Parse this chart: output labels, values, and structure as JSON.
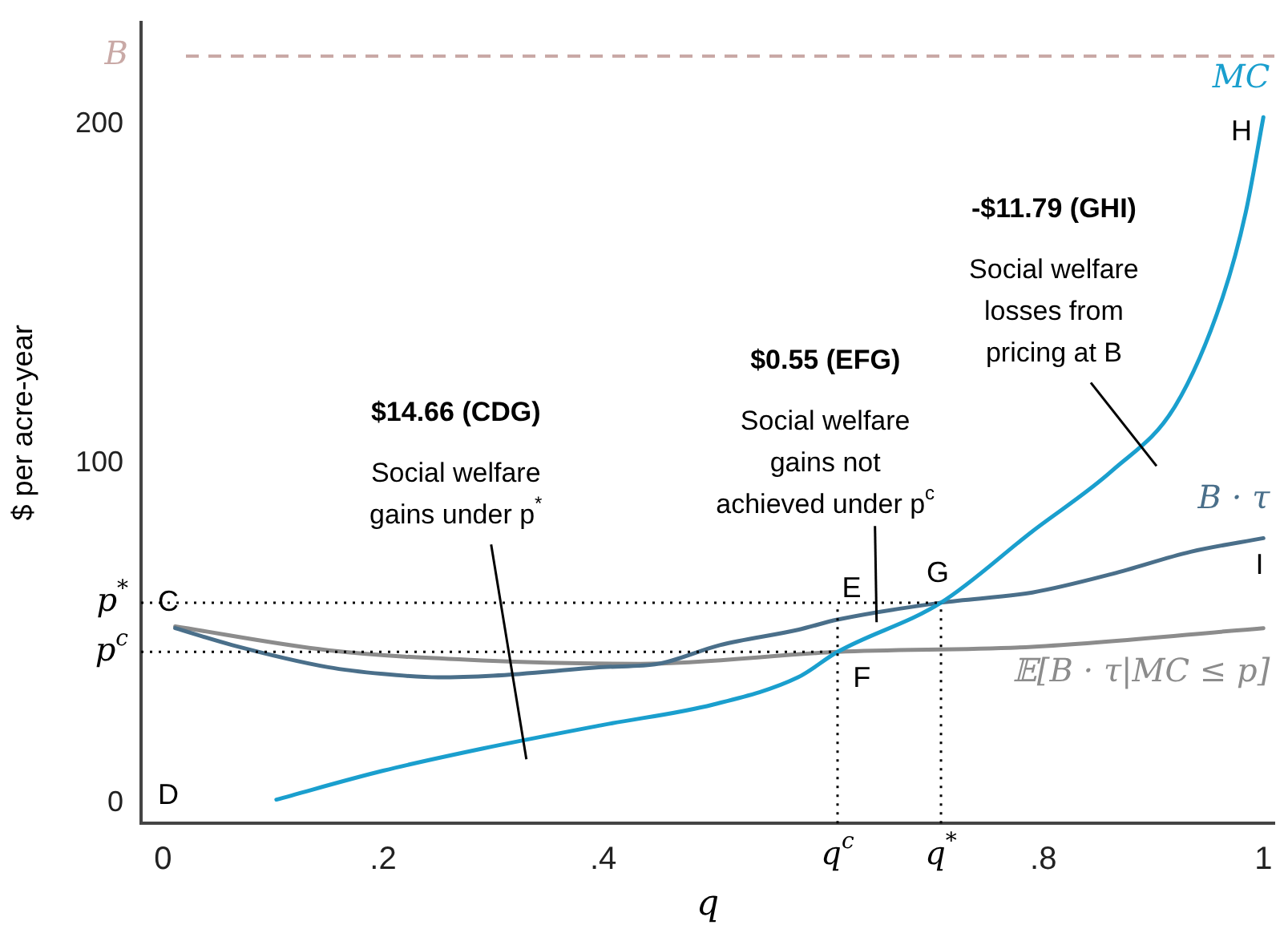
{
  "chart_data": {
    "type": "line",
    "xlabel": "q",
    "ylabel": "$ per acre-year",
    "xlim": [
      -0.02,
      1.01
    ],
    "ylim": [
      -6,
      230
    ],
    "xticks": [
      0,
      {
        "value": 0.2,
        "label": ".2"
      },
      {
        "value": 0.4,
        "label": ".4"
      },
      {
        "value": 0.8,
        "label": ".8"
      },
      1
    ],
    "yticks": [
      0,
      100,
      200
    ],
    "series": [
      {
        "name": "MC",
        "color": "#1a9fce",
        "x": [
          0.103,
          0.2,
          0.29,
          0.4,
          0.5,
          0.577,
          0.613,
          0.707,
          0.79,
          0.863,
          0.92,
          0.963,
          0.984,
          1
        ],
        "values": [
          1,
          9.5,
          16,
          23,
          29,
          37,
          44.5,
          59,
          80,
          98,
          117,
          149,
          174,
          202
        ]
      },
      {
        "name": "B · τ",
        "color": "#4a6f8a",
        "x": [
          0.011,
          0.063,
          0.15,
          0.2,
          0.25,
          0.3,
          0.4,
          0.45,
          0.506,
          0.577,
          0.613,
          0.707,
          0.79,
          0.863,
          0.934,
          1
        ],
        "values": [
          51.5,
          46.5,
          40,
          38,
          37,
          37.5,
          40,
          41,
          46.5,
          51,
          54,
          59,
          62,
          67.5,
          74,
          78
        ]
      },
      {
        "name": "𝔼[B · τ|MC ≤ p]",
        "color": "#8c8c8c",
        "x": [
          0.011,
          0.15,
          0.29,
          0.434,
          0.613,
          0.79,
          1
        ],
        "values": [
          52,
          45,
          42,
          41,
          44.5,
          46,
          51.5
        ]
      }
    ],
    "ref_lines": [
      {
        "axis": "y",
        "value": 220,
        "label": "B",
        "color": "#c9a9a6",
        "line_style": "dashed"
      },
      {
        "axis": "y",
        "value": 59,
        "label": "p$^{*}$",
        "color": "#000000",
        "line_style": "dotted"
      },
      {
        "axis": "y",
        "value": 44.5,
        "label": "p$^{c}$",
        "color": "#000000",
        "line_style": "dotted"
      },
      {
        "axis": "x",
        "value": 0.707,
        "label": "q$^{*}$",
        "color": "#000000",
        "line_style": "dotted"
      },
      {
        "axis": "x",
        "value": 0.613,
        "label": "q$^{c}$",
        "color": "#000000",
        "line_style": "dotted"
      }
    ],
    "annotations": [
      "$14.66 (CDG)\nSocial welfare\ngains under p$^{*}$",
      "$0.55 (EFG)\nSocial welfare\ngains not\nachieved under p$^{c}$",
      "-$11.79 (GHI)\nSocial welfare\nlosses from\npricing at B",
      "C",
      "D",
      "E",
      "F",
      "G",
      "H",
      "I"
    ],
    "grid": false,
    "legend": false,
    "marker": "none",
    "line_style": "solid"
  }
}
